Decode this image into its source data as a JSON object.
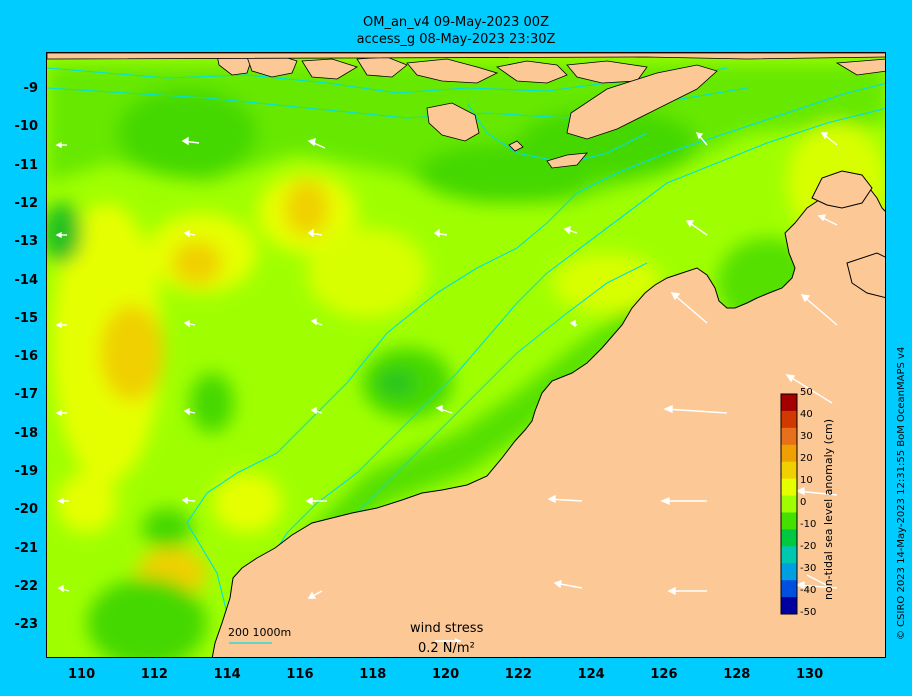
{
  "header": {
    "title_line1": "OM_an_v4  09-May-2023 00Z",
    "title_line2": "access_g 08-May-2023 23:30Z"
  },
  "axes": {
    "lat_labels": [
      "-9",
      "-10",
      "-11",
      "-12",
      "-13",
      "-14",
      "-15",
      "-16",
      "-17",
      "-18",
      "-19",
      "-20",
      "-21",
      "-22",
      "-23"
    ],
    "lon_labels": [
      "110",
      "112",
      "114",
      "116",
      "118",
      "120",
      "122",
      "124",
      "126",
      "128",
      "130"
    ]
  },
  "colorbar": {
    "label": "non-tidal sea level anomaly (cm)",
    "ticks": [
      "50",
      "40",
      "30",
      "20",
      "10",
      "0",
      "-10",
      "-20",
      "-30",
      "-40",
      "-50"
    ],
    "colors": [
      "#a50000",
      "#d03a00",
      "#e8701a",
      "#f0a000",
      "#f0d000",
      "#e6ff00",
      "#9fff00",
      "#44e000",
      "#00c840",
      "#00c8b0",
      "#00a0e0",
      "#0050e0",
      "#0000a0"
    ]
  },
  "legend": {
    "depth_contours": "200  1000m",
    "wind_stress_label": "wind stress",
    "wind_stress_scale": "0.2 N/m²"
  },
  "credit": "© CSIRO 2023  14-May-2023 12:31:55 BoM OceanMAPS v4",
  "colors": {
    "land": "#fcc896",
    "ocean_base": "#9fff00",
    "ocean_green": "#44e000",
    "ocean_dark_green": "#22c020",
    "ocean_yellow": "#e6ff00",
    "ocean_orange_yellow": "#f0d000",
    "contour_cyan": "#00e0e0",
    "background": "#00ccff"
  }
}
